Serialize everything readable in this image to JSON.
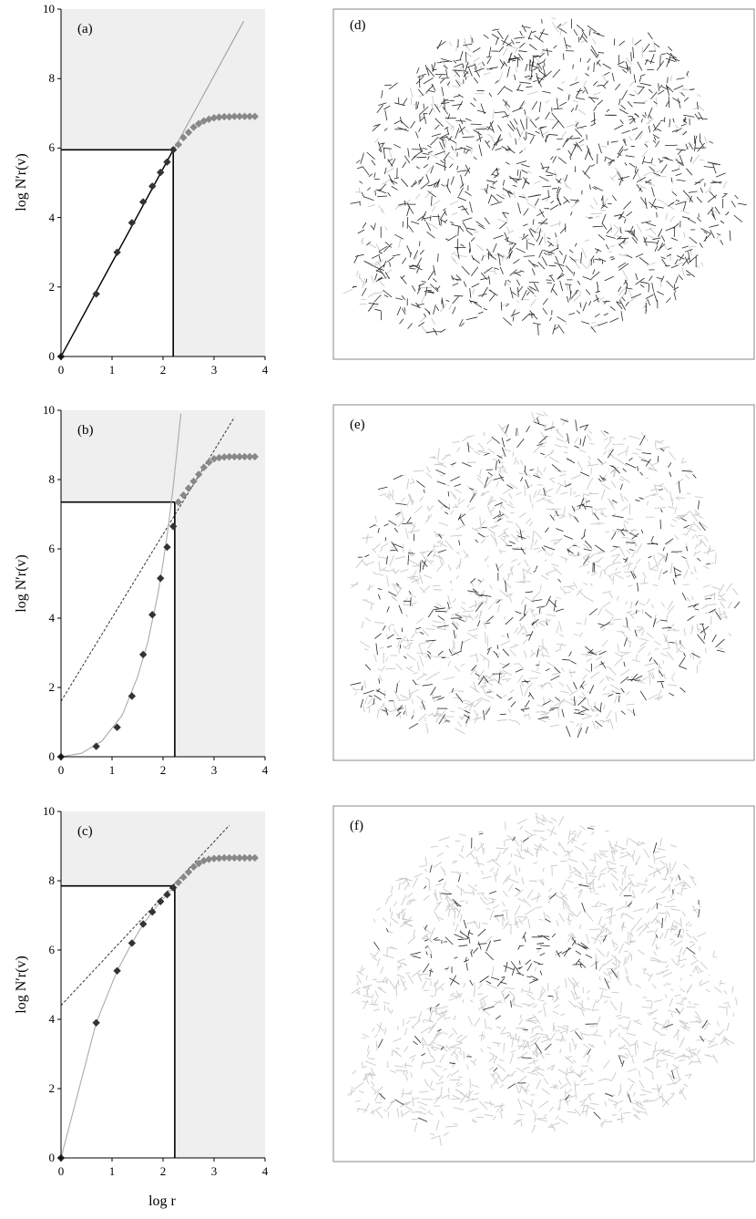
{
  "chart_data": [
    {
      "type": "scatter",
      "panel_label": "(a)",
      "ylabel": "log N′r(v)",
      "xlabel": "",
      "xlim": [
        0,
        4
      ],
      "ylim": [
        0,
        10
      ],
      "xticks": [
        "0",
        "1",
        "2",
        "3",
        "4"
      ],
      "yticks": [
        "0",
        "2",
        "4",
        "6",
        "8",
        "10"
      ],
      "threshold": {
        "x": 2.2,
        "y": 5.95
      },
      "fit_line": {
        "style": "solid",
        "points": [
          [
            0,
            0
          ],
          [
            3.58,
            9.65
          ]
        ]
      },
      "below_points": [
        [
          0,
          0
        ],
        [
          0.69,
          1.8
        ],
        [
          1.1,
          3.0
        ],
        [
          1.39,
          3.85
        ],
        [
          1.61,
          4.45
        ],
        [
          1.79,
          4.9
        ],
        [
          1.95,
          5.3
        ],
        [
          2.08,
          5.6
        ],
        [
          2.2,
          5.95
        ]
      ],
      "above_points": [
        [
          2.3,
          6.1
        ],
        [
          2.4,
          6.3
        ],
        [
          2.5,
          6.45
        ],
        [
          2.6,
          6.6
        ],
        [
          2.7,
          6.7
        ],
        [
          2.8,
          6.78
        ],
        [
          2.9,
          6.83
        ],
        [
          3.0,
          6.87
        ],
        [
          3.1,
          6.89
        ],
        [
          3.2,
          6.9
        ],
        [
          3.3,
          6.9
        ],
        [
          3.4,
          6.91
        ],
        [
          3.5,
          6.91
        ],
        [
          3.6,
          6.91
        ],
        [
          3.7,
          6.91
        ],
        [
          3.8,
          6.91
        ]
      ]
    },
    {
      "type": "scatter",
      "panel_label": "(b)",
      "ylabel": "log N′r(v)",
      "xlabel": "",
      "xlim": [
        0,
        4
      ],
      "ylim": [
        0,
        10
      ],
      "xticks": [
        "0",
        "1",
        "2",
        "3",
        "4"
      ],
      "yticks": [
        "0",
        "2",
        "4",
        "6",
        "8",
        "10"
      ],
      "threshold": {
        "x": 2.23,
        "y": 7.35
      },
      "fit_line": {
        "style": "dashed",
        "points": [
          [
            0,
            1.6
          ],
          [
            3.4,
            9.8
          ]
        ]
      },
      "curve": [
        [
          0,
          0
        ],
        [
          0.4,
          0.1
        ],
        [
          0.8,
          0.45
        ],
        [
          1.2,
          1.2
        ],
        [
          1.5,
          2.3
        ],
        [
          1.7,
          3.3
        ],
        [
          1.9,
          4.7
        ],
        [
          2.0,
          5.6
        ],
        [
          2.1,
          6.6
        ],
        [
          2.2,
          7.8
        ],
        [
          2.3,
          9.2
        ],
        [
          2.35,
          9.9
        ]
      ],
      "below_points": [
        [
          0,
          0
        ],
        [
          0.69,
          0.3
        ],
        [
          1.1,
          0.85
        ],
        [
          1.39,
          1.75
        ],
        [
          1.61,
          2.95
        ],
        [
          1.79,
          4.1
        ],
        [
          1.95,
          5.15
        ],
        [
          2.08,
          6.05
        ],
        [
          2.2,
          6.65
        ]
      ],
      "above_points": [
        [
          2.3,
          7.35
        ],
        [
          2.4,
          7.55
        ],
        [
          2.5,
          7.75
        ],
        [
          2.6,
          7.95
        ],
        [
          2.7,
          8.15
        ],
        [
          2.8,
          8.35
        ],
        [
          2.9,
          8.5
        ],
        [
          3.0,
          8.6
        ],
        [
          3.1,
          8.63
        ],
        [
          3.2,
          8.65
        ],
        [
          3.3,
          8.66
        ],
        [
          3.4,
          8.66
        ],
        [
          3.5,
          8.66
        ],
        [
          3.6,
          8.66
        ],
        [
          3.7,
          8.66
        ],
        [
          3.8,
          8.66
        ]
      ]
    },
    {
      "type": "scatter",
      "panel_label": "(c)",
      "ylabel": "log N′r(v)",
      "xlabel": "log r",
      "xlim": [
        0,
        4
      ],
      "ylim": [
        0,
        10
      ],
      "xticks": [
        "0",
        "1",
        "2",
        "3",
        "4"
      ],
      "yticks": [
        "0",
        "2",
        "4",
        "6",
        "8",
        "10"
      ],
      "threshold": {
        "x": 2.23,
        "y": 7.85
      },
      "fit_line": {
        "style": "dashed",
        "points": [
          [
            0,
            4.4
          ],
          [
            3.3,
            9.6
          ]
        ]
      },
      "curve": [
        [
          0,
          0
        ],
        [
          0.69,
          3.9
        ],
        [
          1.1,
          5.4
        ],
        [
          1.39,
          6.2
        ],
        [
          1.61,
          6.75
        ],
        [
          1.79,
          7.1
        ],
        [
          1.95,
          7.4
        ],
        [
          2.08,
          7.6
        ],
        [
          2.2,
          7.8
        ]
      ],
      "below_points": [
        [
          0,
          0
        ],
        [
          0.69,
          3.9
        ],
        [
          1.1,
          5.4
        ],
        [
          1.39,
          6.2
        ],
        [
          1.61,
          6.75
        ],
        [
          1.79,
          7.1
        ],
        [
          1.95,
          7.4
        ],
        [
          2.08,
          7.6
        ],
        [
          2.2,
          7.8
        ]
      ],
      "above_points": [
        [
          2.3,
          7.95
        ],
        [
          2.4,
          8.1
        ],
        [
          2.5,
          8.25
        ],
        [
          2.6,
          8.4
        ],
        [
          2.7,
          8.5
        ],
        [
          2.8,
          8.58
        ],
        [
          2.9,
          8.62
        ],
        [
          3.0,
          8.64
        ],
        [
          3.1,
          8.65
        ],
        [
          3.2,
          8.66
        ],
        [
          3.3,
          8.66
        ],
        [
          3.4,
          8.66
        ],
        [
          3.5,
          8.66
        ],
        [
          3.6,
          8.66
        ],
        [
          3.7,
          8.66
        ],
        [
          3.8,
          8.66
        ]
      ]
    }
  ],
  "maps": [
    {
      "label": "(d)",
      "dark_share": 0.8,
      "cluster": null
    },
    {
      "label": "(e)",
      "dark_share": 0.3,
      "cluster": null
    },
    {
      "label": "(f)",
      "dark_share": 0.12,
      "cluster": "center-west"
    }
  ],
  "colors": {
    "shade": "#efefef",
    "marker_dark": "#333333",
    "marker_light": "#888888",
    "street_dark": "#2a2a2a",
    "street_light": "#c9c9c9",
    "frame": "#888888"
  }
}
